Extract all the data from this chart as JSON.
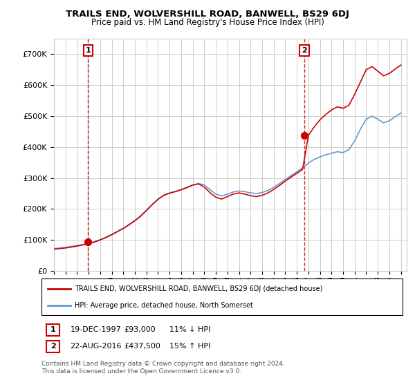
{
  "title": "TRAILS END, WOLVERSHILL ROAD, BANWELL, BS29 6DJ",
  "subtitle": "Price paid vs. HM Land Registry's House Price Index (HPI)",
  "legend_label_red": "TRAILS END, WOLVERSHILL ROAD, BANWELL, BS29 6DJ (detached house)",
  "legend_label_blue": "HPI: Average price, detached house, North Somerset",
  "transaction1_label": "1",
  "transaction1_date": "19-DEC-1997",
  "transaction1_price": "£93,000",
  "transaction1_hpi": "11% ↓ HPI",
  "transaction1_year": 1997.96,
  "transaction1_value": 93000,
  "transaction2_label": "2",
  "transaction2_date": "22-AUG-2016",
  "transaction2_price": "£437,500",
  "transaction2_hpi": "15% ↑ HPI",
  "transaction2_year": 2016.64,
  "transaction2_value": 437500,
  "footer_line1": "Contains HM Land Registry data © Crown copyright and database right 2024.",
  "footer_line2": "This data is licensed under the Open Government Licence v3.0.",
  "ylim": [
    0,
    750000
  ],
  "xlim_start": 1995.0,
  "xlim_end": 2025.5,
  "background_color": "#ffffff",
  "grid_color": "#cccccc",
  "red_color": "#cc0000",
  "blue_color": "#6699cc",
  "dashed_color": "#cc0000",
  "yticks": [
    0,
    100000,
    200000,
    300000,
    400000,
    500000,
    600000,
    700000
  ],
  "xticks": [
    1995,
    1996,
    1997,
    1998,
    1999,
    2000,
    2001,
    2002,
    2003,
    2004,
    2005,
    2006,
    2007,
    2008,
    2009,
    2010,
    2011,
    2012,
    2013,
    2014,
    2015,
    2016,
    2017,
    2018,
    2019,
    2020,
    2021,
    2022,
    2023,
    2024,
    2025
  ],
  "years_hpi": [
    1995.0,
    1995.5,
    1996.0,
    1996.5,
    1997.0,
    1997.5,
    1998.0,
    1998.5,
    1999.0,
    1999.5,
    2000.0,
    2000.5,
    2001.0,
    2001.5,
    2002.0,
    2002.5,
    2003.0,
    2003.5,
    2004.0,
    2004.5,
    2005.0,
    2005.5,
    2006.0,
    2006.5,
    2007.0,
    2007.5,
    2008.0,
    2008.5,
    2009.0,
    2009.5,
    2010.0,
    2010.5,
    2011.0,
    2011.5,
    2012.0,
    2012.5,
    2013.0,
    2013.5,
    2014.0,
    2014.5,
    2015.0,
    2015.5,
    2016.0,
    2016.5,
    2017.0,
    2017.5,
    2018.0,
    2018.5,
    2019.0,
    2019.5,
    2020.0,
    2020.5,
    2021.0,
    2021.5,
    2022.0,
    2022.5,
    2023.0,
    2023.5,
    2024.0,
    2024.5,
    2025.0
  ],
  "hpi_values": [
    72000,
    74000,
    76000,
    79000,
    82000,
    85000,
    89000,
    94000,
    101000,
    109000,
    118000,
    128000,
    138000,
    150000,
    163000,
    178000,
    196000,
    215000,
    232000,
    245000,
    252000,
    257000,
    263000,
    270000,
    278000,
    282000,
    278000,
    262000,
    248000,
    242000,
    248000,
    255000,
    258000,
    256000,
    252000,
    250000,
    253000,
    260000,
    270000,
    282000,
    295000,
    308000,
    320000,
    333000,
    348000,
    360000,
    368000,
    375000,
    380000,
    385000,
    382000,
    392000,
    420000,
    458000,
    490000,
    500000,
    490000,
    478000,
    485000,
    498000,
    510000
  ],
  "red_values": [
    70000,
    72000,
    74000,
    77000,
    80000,
    84000,
    88000,
    93000,
    100000,
    108000,
    117000,
    127000,
    137000,
    149000,
    162000,
    177000,
    195000,
    214000,
    231000,
    244000,
    251000,
    256000,
    262000,
    269000,
    277000,
    281000,
    271000,
    252000,
    238000,
    232000,
    240000,
    248000,
    252000,
    248000,
    243000,
    240000,
    244000,
    252000,
    263000,
    276000,
    290000,
    303000,
    315000,
    328000,
    437500,
    465000,
    488000,
    505000,
    520000,
    530000,
    525000,
    535000,
    570000,
    610000,
    650000,
    660000,
    645000,
    630000,
    638000,
    652000,
    665000
  ]
}
